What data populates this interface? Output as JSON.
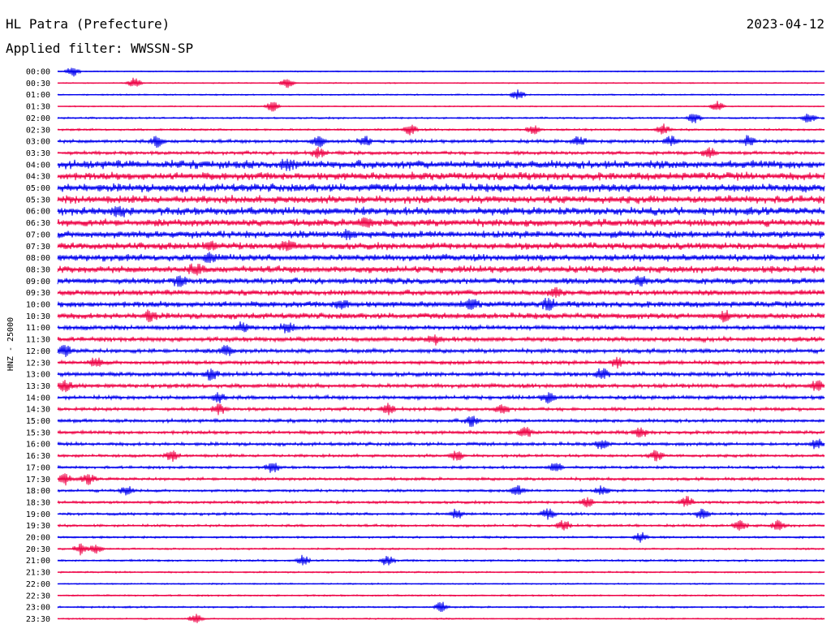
{
  "header": {
    "station": "HL Patra (Prefecture)",
    "date": "2023-04-12",
    "filter": "Applied filter: WWSSN-SP"
  },
  "chart_data": {
    "type": "line",
    "title": "HL Patra (Prefecture)",
    "subtitle": "Applied filter: WWSSN-SP",
    "ylabel": "HNZ - 25000",
    "xlabel": "",
    "date": "2023-04-12",
    "row_interval_minutes": 30,
    "colors": [
      "#0000ee",
      "#ee0044"
    ],
    "rows": [
      {
        "label": "00:00",
        "color": "#0000ee",
        "activity": 0.05,
        "events": [
          0.02
        ]
      },
      {
        "label": "00:30",
        "color": "#ee0044",
        "activity": 0.05,
        "events": [
          0.1,
          0.3
        ]
      },
      {
        "label": "01:00",
        "color": "#0000ee",
        "activity": 0.08,
        "events": [
          0.6
        ]
      },
      {
        "label": "01:30",
        "color": "#ee0044",
        "activity": 0.05,
        "events": [
          0.28,
          0.86
        ]
      },
      {
        "label": "02:00",
        "color": "#0000ee",
        "activity": 0.12,
        "events": [
          0.83,
          0.98
        ]
      },
      {
        "label": "02:30",
        "color": "#ee0044",
        "activity": 0.15,
        "events": [
          0.46,
          0.62,
          0.79
        ]
      },
      {
        "label": "03:00",
        "color": "#0000ee",
        "activity": 0.3,
        "events": [
          0.13,
          0.34,
          0.4,
          0.68,
          0.8,
          0.9
        ]
      },
      {
        "label": "03:30",
        "color": "#ee0044",
        "activity": 0.3,
        "events": [
          0.34,
          0.85
        ]
      },
      {
        "label": "04:00",
        "color": "#0000ee",
        "activity": 0.85,
        "events": [
          0.3
        ]
      },
      {
        "label": "04:30",
        "color": "#ee0044",
        "activity": 0.8,
        "events": []
      },
      {
        "label": "05:00",
        "color": "#0000ee",
        "activity": 0.85,
        "events": []
      },
      {
        "label": "05:30",
        "color": "#ee0044",
        "activity": 0.8,
        "events": []
      },
      {
        "label": "06:00",
        "color": "#0000ee",
        "activity": 0.8,
        "events": [
          0.08
        ]
      },
      {
        "label": "06:30",
        "color": "#ee0044",
        "activity": 0.75,
        "events": [
          0.4
        ]
      },
      {
        "label": "07:00",
        "color": "#0000ee",
        "activity": 0.75,
        "events": [
          0.38
        ]
      },
      {
        "label": "07:30",
        "color": "#ee0044",
        "activity": 0.7,
        "events": [
          0.2,
          0.3
        ]
      },
      {
        "label": "08:00",
        "color": "#0000ee",
        "activity": 0.7,
        "events": [
          0.2
        ]
      },
      {
        "label": "08:30",
        "color": "#ee0044",
        "activity": 0.7,
        "events": [
          0.18
        ]
      },
      {
        "label": "09:00",
        "color": "#0000ee",
        "activity": 0.6,
        "events": [
          0.16,
          0.76
        ]
      },
      {
        "label": "09:30",
        "color": "#ee0044",
        "activity": 0.55,
        "events": [
          0.65
        ]
      },
      {
        "label": "10:00",
        "color": "#0000ee",
        "activity": 0.6,
        "events": [
          0.37,
          0.54,
          0.64
        ]
      },
      {
        "label": "10:30",
        "color": "#ee0044",
        "activity": 0.6,
        "events": [
          0.12,
          0.87
        ]
      },
      {
        "label": "11:00",
        "color": "#0000ee",
        "activity": 0.45,
        "events": [
          0.24,
          0.3
        ]
      },
      {
        "label": "11:30",
        "color": "#ee0044",
        "activity": 0.45,
        "events": [
          0.49
        ]
      },
      {
        "label": "12:00",
        "color": "#0000ee",
        "activity": 0.4,
        "events": [
          0.01,
          0.22
        ]
      },
      {
        "label": "12:30",
        "color": "#ee0044",
        "activity": 0.35,
        "events": [
          0.05,
          0.73
        ]
      },
      {
        "label": "13:00",
        "color": "#0000ee",
        "activity": 0.4,
        "events": [
          0.2,
          0.71
        ]
      },
      {
        "label": "13:30",
        "color": "#ee0044",
        "activity": 0.4,
        "events": [
          0.01,
          0.99
        ]
      },
      {
        "label": "14:00",
        "color": "#0000ee",
        "activity": 0.35,
        "events": [
          0.21,
          0.64
        ]
      },
      {
        "label": "14:30",
        "color": "#ee0044",
        "activity": 0.3,
        "events": [
          0.21,
          0.43,
          0.58
        ]
      },
      {
        "label": "15:00",
        "color": "#0000ee",
        "activity": 0.3,
        "events": [
          0.54
        ]
      },
      {
        "label": "15:30",
        "color": "#ee0044",
        "activity": 0.3,
        "events": [
          0.61,
          0.76
        ]
      },
      {
        "label": "16:00",
        "color": "#0000ee",
        "activity": 0.3,
        "events": [
          0.71,
          0.99
        ]
      },
      {
        "label": "16:30",
        "color": "#ee0044",
        "activity": 0.25,
        "events": [
          0.15,
          0.52,
          0.78
        ]
      },
      {
        "label": "17:00",
        "color": "#0000ee",
        "activity": 0.22,
        "events": [
          0.28,
          0.65
        ]
      },
      {
        "label": "17:30",
        "color": "#ee0044",
        "activity": 0.25,
        "events": [
          0.01,
          0.04
        ]
      },
      {
        "label": "18:00",
        "color": "#0000ee",
        "activity": 0.22,
        "events": [
          0.09,
          0.6,
          0.71
        ]
      },
      {
        "label": "18:30",
        "color": "#ee0044",
        "activity": 0.22,
        "events": [
          0.69,
          0.82
        ]
      },
      {
        "label": "19:00",
        "color": "#0000ee",
        "activity": 0.22,
        "events": [
          0.52,
          0.64,
          0.84
        ]
      },
      {
        "label": "19:30",
        "color": "#ee0044",
        "activity": 0.2,
        "events": [
          0.66,
          0.89,
          0.94
        ]
      },
      {
        "label": "20:00",
        "color": "#0000ee",
        "activity": 0.15,
        "events": [
          0.76
        ]
      },
      {
        "label": "20:30",
        "color": "#ee0044",
        "activity": 0.12,
        "events": [
          0.03,
          0.05
        ]
      },
      {
        "label": "21:00",
        "color": "#0000ee",
        "activity": 0.15,
        "events": [
          0.32,
          0.43
        ]
      },
      {
        "label": "21:30",
        "color": "#ee0044",
        "activity": 0.1,
        "events": []
      },
      {
        "label": "22:00",
        "color": "#0000ee",
        "activity": 0.08,
        "events": []
      },
      {
        "label": "22:30",
        "color": "#ee0044",
        "activity": 0.1,
        "events": []
      },
      {
        "label": "23:00",
        "color": "#0000ee",
        "activity": 0.12,
        "events": [
          0.5
        ]
      },
      {
        "label": "23:30",
        "color": "#ee0044",
        "activity": 0.08,
        "events": [
          0.18
        ]
      }
    ]
  }
}
